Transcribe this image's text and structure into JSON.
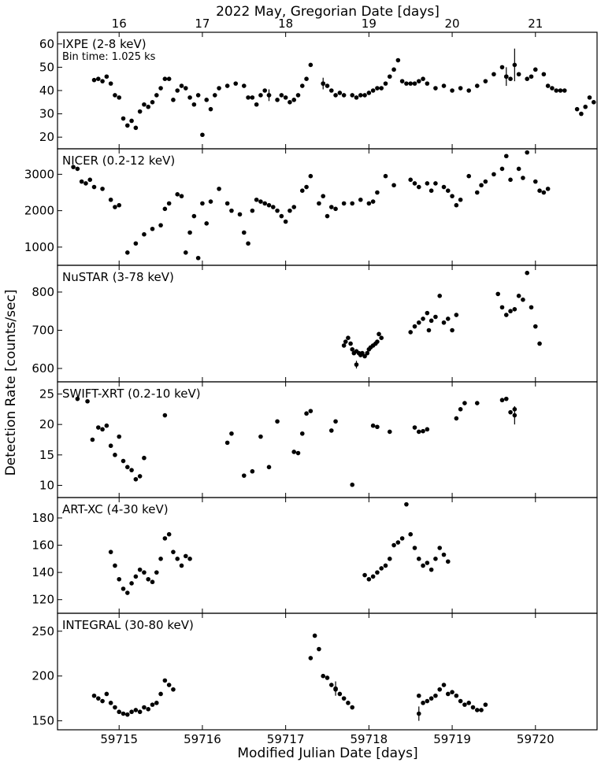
{
  "figure": {
    "top_axis_label": "2022 May, Gregorian Date [days]",
    "bottom_axis_label": "Modified Julian Date [days]",
    "y_axis_label": "Detection Rate [counts/sec]"
  },
  "chart_data": [
    {
      "type": "scatter",
      "title": "IXPE (2-8 keV)",
      "annotation": "Bin time: 1.025 ks",
      "xlim": [
        59714.26,
        59720.74
      ],
      "ylim": [
        15,
        65
      ],
      "yticks": [
        20,
        30,
        40,
        50,
        60
      ],
      "x": [
        59714.7,
        59714.75,
        59714.8,
        59714.85,
        59714.9,
        59714.95,
        59715.0,
        59715.05,
        59715.1,
        59715.15,
        59715.2,
        59715.25,
        59715.3,
        59715.35,
        59715.4,
        59715.45,
        59715.5,
        59715.55,
        59715.6,
        59715.65,
        59715.7,
        59715.75,
        59715.8,
        59715.85,
        59715.9,
        59715.95,
        59716.0,
        59716.05,
        59716.1,
        59716.15,
        59716.2,
        59716.3,
        59716.4,
        59716.5,
        59716.55,
        59716.6,
        59716.65,
        59716.7,
        59716.75,
        59716.8,
        59716.9,
        59716.95,
        59717.0,
        59717.05,
        59717.1,
        59717.15,
        59717.2,
        59717.25,
        59717.3,
        59717.45,
        59717.5,
        59717.55,
        59717.6,
        59717.65,
        59717.7,
        59717.8,
        59717.85,
        59717.9,
        59717.95,
        59718.0,
        59718.05,
        59718.1,
        59718.15,
        59718.2,
        59718.25,
        59718.3,
        59718.35,
        59718.4,
        59718.45,
        59718.5,
        59718.55,
        59718.6,
        59718.65,
        59718.7,
        59718.8,
        59718.9,
        59719.0,
        59719.1,
        59719.2,
        59719.3,
        59719.4,
        59719.5,
        59719.6,
        59719.65,
        59719.7,
        59719.8,
        59719.9,
        59719.95,
        59720.0,
        59720.1,
        59720.15,
        59720.2,
        59720.25,
        59720.3,
        59720.35,
        59720.5,
        59720.55,
        59720.6,
        59720.65,
        59720.7
      ],
      "y": [
        44.5,
        45,
        44,
        46,
        43,
        38,
        37,
        28,
        25,
        27,
        24,
        31,
        34,
        33,
        35,
        38,
        41,
        45,
        45,
        36,
        40,
        42,
        41,
        37,
        34,
        38,
        21,
        36,
        32,
        38,
        41,
        42,
        43,
        42,
        37,
        37,
        34,
        38,
        40,
        38,
        36,
        38,
        37,
        35,
        36,
        38,
        42,
        45,
        51,
        43,
        42,
        40,
        38,
        39,
        38,
        38,
        37,
        38,
        38,
        39,
        40,
        41,
        41,
        43,
        46,
        49,
        53,
        44,
        43,
        43,
        43,
        44,
        45,
        43,
        41,
        42,
        40,
        41,
        40,
        42,
        44,
        47,
        50,
        46,
        45,
        47,
        45,
        46,
        49,
        47,
        42,
        41,
        40,
        40,
        40,
        32,
        30,
        33,
        37,
        35
      ],
      "error_bars": [
        {
          "x": 59716.8,
          "y": 38,
          "err": 2.5
        },
        {
          "x": 59717.45,
          "y": 43,
          "err": 2.5
        },
        {
          "x": 59719.65,
          "y": 46,
          "err": 4
        },
        {
          "x": 59719.75,
          "y": 51,
          "err": 7
        }
      ]
    },
    {
      "type": "scatter",
      "title": "NICER (0.2-12 keV)",
      "xlim": [
        59714.26,
        59720.74
      ],
      "ylim": [
        500,
        3700
      ],
      "yticks": [
        1000,
        2000,
        3000
      ],
      "x": [
        59714.45,
        59714.5,
        59714.55,
        59714.6,
        59714.65,
        59714.7,
        59714.8,
        59714.9,
        59714.95,
        59715.0,
        59715.1,
        59715.2,
        59715.3,
        59715.4,
        59715.5,
        59715.55,
        59715.6,
        59715.7,
        59715.75,
        59715.8,
        59715.85,
        59715.9,
        59715.95,
        59716.0,
        59716.05,
        59716.1,
        59716.2,
        59716.3,
        59716.35,
        59716.45,
        59716.5,
        59716.55,
        59716.6,
        59716.65,
        59716.7,
        59716.75,
        59716.8,
        59716.85,
        59716.9,
        59716.95,
        59717.0,
        59717.05,
        59717.1,
        59717.2,
        59717.25,
        59717.3,
        59717.4,
        59717.45,
        59717.5,
        59717.55,
        59717.6,
        59717.7,
        59717.8,
        59717.9,
        59718.0,
        59718.05,
        59718.1,
        59718.2,
        59718.3,
        59718.5,
        59718.55,
        59718.6,
        59718.7,
        59718.75,
        59718.8,
        59718.9,
        59718.95,
        59719.0,
        59719.05,
        59719.1,
        59719.2,
        59719.3,
        59719.35,
        59719.4,
        59719.5,
        59719.6,
        59719.65,
        59719.7,
        59719.8,
        59719.85,
        59719.9,
        59720.0,
        59720.05,
        59720.1,
        59720.15
      ],
      "y": [
        3200,
        3150,
        2800,
        2750,
        2850,
        2650,
        2600,
        2300,
        2100,
        2150,
        850,
        1100,
        1350,
        1500,
        1600,
        2050,
        2200,
        2450,
        2400,
        850,
        1400,
        1850,
        700,
        2200,
        1650,
        2250,
        2600,
        2200,
        2000,
        1900,
        1400,
        1100,
        2000,
        2300,
        2250,
        2200,
        2150,
        2100,
        2000,
        1850,
        1700,
        2000,
        2100,
        2550,
        2650,
        2950,
        2200,
        2400,
        1850,
        2100,
        2050,
        2200,
        2200,
        2300,
        2200,
        2250,
        2500,
        2950,
        2700,
        2850,
        2750,
        2650,
        2750,
        2550,
        2750,
        2650,
        2550,
        2400,
        2150,
        2300,
        2950,
        2500,
        2700,
        2800,
        3000,
        3150,
        3500,
        2850,
        3150,
        2900,
        3600,
        2800,
        2550,
        2500,
        2600
      ]
    },
    {
      "type": "scatter",
      "title": "NuSTAR (3-78 keV)",
      "xlim": [
        59714.26,
        59720.74
      ],
      "ylim": [
        565,
        870
      ],
      "yticks": [
        600,
        700,
        800
      ],
      "x": [
        59717.7,
        59717.72,
        59717.75,
        59717.78,
        59717.8,
        59717.82,
        59717.85,
        59717.88,
        59717.9,
        59717.92,
        59717.95,
        59717.98,
        59718.0,
        59718.02,
        59718.05,
        59718.08,
        59718.1,
        59718.12,
        59718.15,
        59718.5,
        59718.55,
        59718.6,
        59718.65,
        59718.7,
        59718.72,
        59718.75,
        59718.8,
        59718.85,
        59718.9,
        59718.95,
        59719.0,
        59719.05,
        59719.55,
        59719.6,
        59719.65,
        59719.7,
        59719.75,
        59719.8,
        59719.85,
        59719.9,
        59719.95,
        59720.0,
        59720.05
      ],
      "y": [
        660,
        670,
        680,
        665,
        650,
        640,
        645,
        640,
        635,
        640,
        632,
        640,
        650,
        655,
        660,
        665,
        670,
        690,
        680,
        695,
        710,
        720,
        730,
        745,
        700,
        725,
        735,
        790,
        720,
        730,
        700,
        740,
        795,
        760,
        740,
        750,
        755,
        790,
        780,
        850,
        760,
        710,
        665
      ],
      "error_bars": [
        {
          "x": 59717.85,
          "y": 610,
          "err": 10
        }
      ]
    },
    {
      "type": "scatter",
      "title": "SWIFT-XRT (0.2-10 keV)",
      "xlim": [
        59714.26,
        59720.74
      ],
      "ylim": [
        8,
        27
      ],
      "yticks": [
        10,
        15,
        20,
        25
      ],
      "x": [
        59714.5,
        59714.62,
        59714.68,
        59714.75,
        59714.8,
        59714.85,
        59714.9,
        59714.95,
        59715.0,
        59715.05,
        59715.1,
        59715.15,
        59715.2,
        59715.25,
        59715.3,
        59715.55,
        59716.3,
        59716.35,
        59716.5,
        59716.6,
        59716.7,
        59716.8,
        59716.9,
        59717.1,
        59717.15,
        59717.2,
        59717.25,
        59717.3,
        59717.55,
        59717.6,
        59717.8,
        59718.05,
        59718.1,
        59718.25,
        59718.55,
        59718.6,
        59718.65,
        59718.7,
        59719.05,
        59719.1,
        59719.15,
        59719.3,
        59719.6,
        59719.65,
        59719.7,
        59719.75
      ],
      "y": [
        24.2,
        23.8,
        17.5,
        19.5,
        19.2,
        19.8,
        16.5,
        15,
        18,
        14,
        13,
        12.5,
        11,
        11.5,
        14.5,
        21.5,
        17,
        18.5,
        11.6,
        12.3,
        18,
        13,
        20.5,
        15.5,
        15.3,
        18.5,
        21.8,
        22.2,
        19,
        20.5,
        10.1,
        19.8,
        19.6,
        18.8,
        19.5,
        18.8,
        18.9,
        19.2,
        21,
        22.5,
        23.5,
        23.5,
        24,
        24.2,
        22,
        22.5
      ],
      "error_bars": [
        {
          "x": 59719.75,
          "y": 21.5,
          "err": 1.5
        }
      ]
    },
    {
      "type": "scatter",
      "title": "ART-XC (4-30 keV)",
      "xlim": [
        59714.26,
        59720.74
      ],
      "ylim": [
        110,
        195
      ],
      "yticks": [
        120,
        140,
        160,
        180
      ],
      "x": [
        59714.9,
        59714.95,
        59715.0,
        59715.05,
        59715.1,
        59715.15,
        59715.2,
        59715.25,
        59715.3,
        59715.35,
        59715.4,
        59715.45,
        59715.5,
        59715.55,
        59715.6,
        59715.65,
        59715.7,
        59715.75,
        59715.8,
        59715.85,
        59717.95,
        59718.0,
        59718.05,
        59718.1,
        59718.15,
        59718.2,
        59718.25,
        59718.3,
        59718.35,
        59718.4,
        59718.45,
        59718.5,
        59718.55,
        59718.6,
        59718.65,
        59718.7,
        59718.75,
        59718.8,
        59718.85,
        59718.9,
        59718.95
      ],
      "y": [
        155,
        145,
        135,
        128,
        125,
        132,
        137,
        142,
        140,
        135,
        133,
        140,
        150,
        165,
        168,
        155,
        150,
        145,
        152,
        150,
        138,
        135,
        137,
        140,
        143,
        145,
        150,
        160,
        162,
        165,
        190,
        168,
        158,
        150,
        145,
        147,
        142,
        150,
        158,
        153,
        148
      ]
    },
    {
      "type": "scatter",
      "title": "INTEGRAL (30-80 keV)",
      "xlim": [
        59714.26,
        59720.74
      ],
      "ylim": [
        140,
        270
      ],
      "yticks": [
        150,
        200,
        250
      ],
      "x": [
        59714.7,
        59714.75,
        59714.8,
        59714.85,
        59714.9,
        59714.95,
        59715.0,
        59715.05,
        59715.1,
        59715.15,
        59715.2,
        59715.25,
        59715.3,
        59715.35,
        59715.4,
        59715.45,
        59715.5,
        59715.55,
        59715.6,
        59715.65,
        59717.3,
        59717.35,
        59717.4,
        59717.45,
        59717.5,
        59717.55,
        59717.6,
        59717.65,
        59717.7,
        59717.75,
        59717.8,
        59718.6,
        59718.65,
        59718.7,
        59718.75,
        59718.8,
        59718.85,
        59718.9,
        59718.95,
        59719.0,
        59719.05,
        59719.1,
        59719.15,
        59719.2,
        59719.25,
        59719.3,
        59719.35,
        59719.4
      ],
      "y": [
        178,
        175,
        172,
        180,
        170,
        165,
        160,
        158,
        157,
        160,
        162,
        160,
        165,
        163,
        168,
        170,
        180,
        195,
        190,
        185,
        220,
        245,
        230,
        200,
        198,
        190,
        185,
        180,
        175,
        170,
        165,
        178,
        170,
        172,
        175,
        178,
        185,
        190,
        180,
        182,
        178,
        172,
        168,
        170,
        165,
        162,
        162,
        168
      ],
      "error_bars": [
        {
          "x": 59718.6,
          "y": 158,
          "err": 8
        },
        {
          "x": 59717.6,
          "y": 186,
          "err": 8
        }
      ]
    }
  ],
  "axes": {
    "x_bottom": {
      "ticks": [
        59715,
        59716,
        59717,
        59718,
        59719,
        59720
      ],
      "labels": [
        "59715",
        "59716",
        "59717",
        "59718",
        "59719",
        "59720"
      ]
    },
    "x_top": {
      "ticks": [
        16,
        17,
        18,
        19,
        20,
        21
      ],
      "labels": [
        "16",
        "17",
        "18",
        "19",
        "20",
        "21"
      ],
      "offset_mjd": 59699
    }
  }
}
